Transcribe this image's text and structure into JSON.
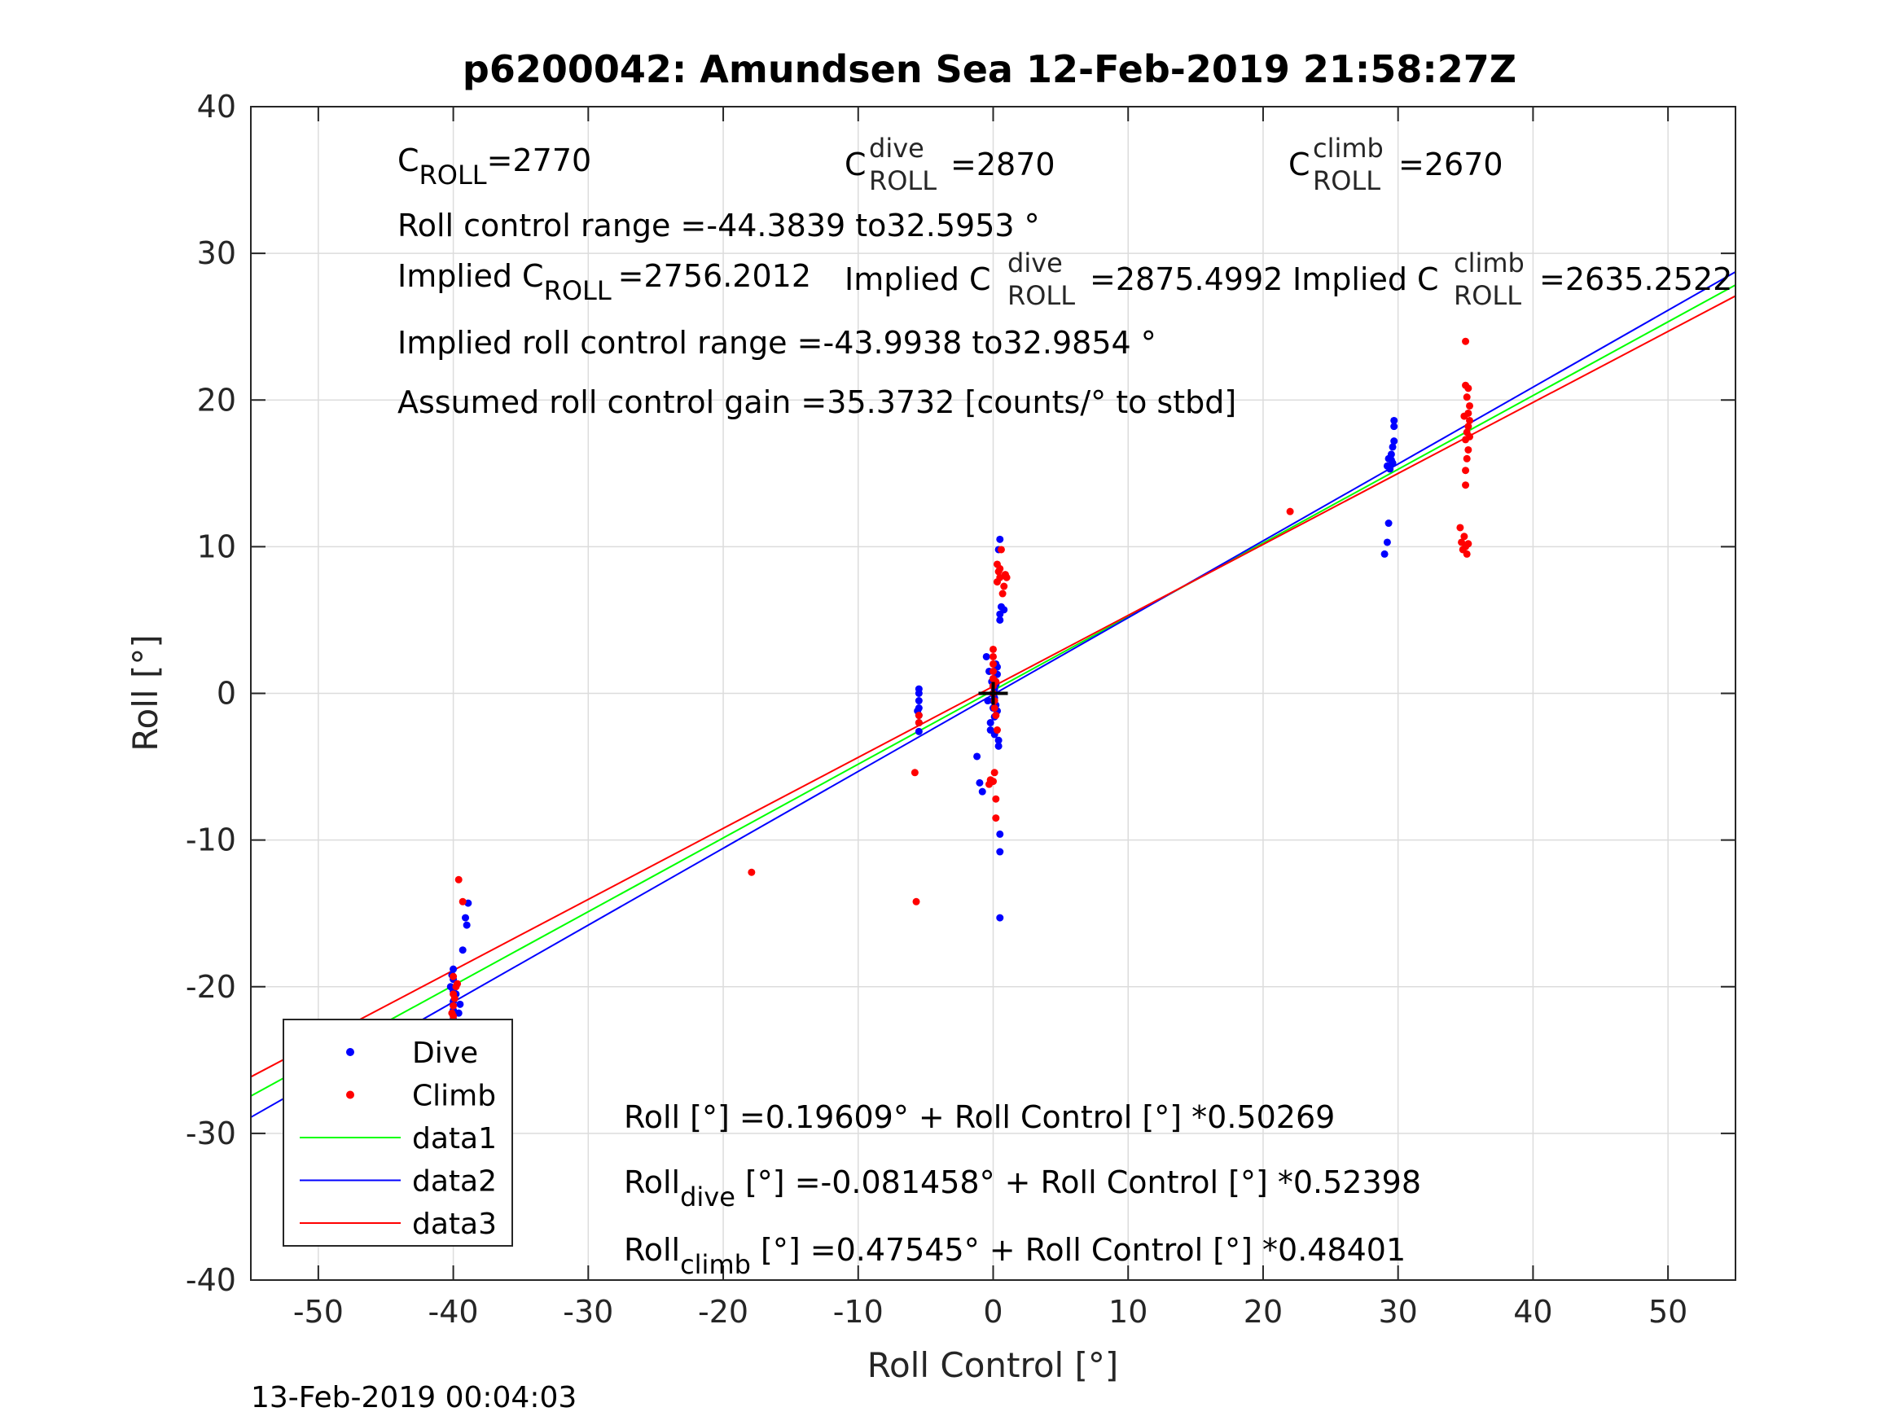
{
  "chart_data": {
    "type": "scatter",
    "title": "p6200042: Amundsen Sea 12-Feb-2019 21:58:27Z",
    "xlabel": "Roll Control [°]",
    "ylabel": "Roll [°]",
    "xlim": [
      -55,
      55
    ],
    "ylim": [
      -40,
      40
    ],
    "xticks": [
      -50,
      -40,
      -30,
      -20,
      -10,
      0,
      10,
      20,
      30,
      40,
      50
    ],
    "yticks": [
      -40,
      -30,
      -20,
      -10,
      0,
      10,
      20,
      30,
      40
    ],
    "grid": true,
    "legend_position": "bottom-left",
    "footer": "13-Feb-2019 00:04:03",
    "annotations": {
      "c_roll": {
        "main": "C",
        "sub": "ROLL",
        "value": "=2770"
      },
      "c_roll_dive": {
        "main": "C",
        "sup": "dive",
        "sub": "ROLL",
        "value": "=2870"
      },
      "c_roll_climb": {
        "main": "C",
        "sup": "climb",
        "sub": "ROLL",
        "value": "=2670"
      },
      "roll_range": "Roll control range =-44.3839 to32.5953 °",
      "implied_c_roll": {
        "main": "Implied C",
        "sub": "ROLL",
        "value": "=2756.2012"
      },
      "implied_c_roll_dive": {
        "main": "Implied C",
        "sup": "dive",
        "sub": "ROLL",
        "value": "=2875.4992"
      },
      "implied_c_roll_climb": {
        "main": "Implied C",
        "sup": "climb",
        "sub": "ROLL",
        "value": "=2635.2522"
      },
      "implied_range": "Implied roll control range =-43.9938 to32.9854 °",
      "gain": "Assumed roll control gain =35.3732 [counts/° to stbd]",
      "fit_all": "Roll [°] =0.19609° + Roll Control [°] *0.50269",
      "fit_dive": {
        "main": "Roll",
        "sub": "dive",
        "rest": " [°] =-0.081458° + Roll Control [°] *0.52398"
      },
      "fit_climb": {
        "main": "Roll",
        "sub": "climb",
        "rest": " [°] =0.47545° + Roll Control [°] *0.48401"
      }
    },
    "lines": [
      {
        "name": "data1",
        "color": "#00ff00",
        "intercept": 0.19609,
        "slope": 0.50269
      },
      {
        "name": "data2",
        "color": "#0000ff",
        "intercept": -0.081458,
        "slope": 0.52398
      },
      {
        "name": "data3",
        "color": "#ff0000",
        "intercept": 0.47545,
        "slope": 0.48401
      }
    ],
    "series": [
      {
        "name": "Dive",
        "color": "#0000ff",
        "points": [
          [
            -40,
            -18.8
          ],
          [
            -40,
            -19.5
          ],
          [
            -40,
            -20.3
          ],
          [
            -40,
            -21
          ],
          [
            -40,
            -21.6
          ],
          [
            -40,
            -22.2
          ],
          [
            -40,
            -22.8
          ],
          [
            -40,
            -23.5
          ],
          [
            -39.8,
            -20.5
          ],
          [
            -39.6,
            -21.8
          ],
          [
            -39.3,
            -17.5
          ],
          [
            -39.1,
            -15.3
          ],
          [
            -39,
            -15.8
          ],
          [
            -38.9,
            -14.3
          ],
          [
            -39.5,
            -21.2
          ],
          [
            -40.2,
            -20
          ],
          [
            -39.7,
            -22.5
          ],
          [
            -40.1,
            -19.2
          ],
          [
            -5.5,
            0
          ],
          [
            -5.5,
            -0.5
          ],
          [
            -5.5,
            -1
          ],
          [
            -5.5,
            -1.5
          ],
          [
            -5.5,
            -2
          ],
          [
            -5.5,
            -2.6
          ],
          [
            -5.5,
            0.3
          ],
          [
            -5.6,
            -1.2
          ],
          [
            -1.2,
            -4.3
          ],
          [
            -1,
            -6.1
          ],
          [
            -0.8,
            -6.7
          ],
          [
            -0.4,
            -0.5
          ],
          [
            -0.2,
            -2.5
          ],
          [
            -0.5,
            2.5
          ],
          [
            -0.3,
            1.5
          ],
          [
            -0.1,
            0.8
          ],
          [
            0,
            0
          ],
          [
            0,
            0.5
          ],
          [
            0,
            -0.5
          ],
          [
            0,
            1
          ],
          [
            0,
            -1
          ],
          [
            0.1,
            0.3
          ],
          [
            0.1,
            -0.3
          ],
          [
            0.2,
            0.6
          ],
          [
            0.2,
            -0.8
          ],
          [
            0.3,
            -1.2
          ],
          [
            0.3,
            1.3
          ],
          [
            0.4,
            -3.6
          ],
          [
            0.4,
            -3.2
          ],
          [
            0.5,
            5
          ],
          [
            0.5,
            5.4
          ],
          [
            0.5,
            -9.6
          ],
          [
            0.5,
            -10.8
          ],
          [
            0.5,
            10.5
          ],
          [
            0.4,
            9.8
          ],
          [
            0.6,
            5.9
          ],
          [
            0.8,
            5.7
          ],
          [
            0.5,
            -15.3
          ],
          [
            -0.2,
            -2
          ],
          [
            0.1,
            -2.8
          ],
          [
            0.2,
            2
          ],
          [
            0.3,
            1.8
          ],
          [
            0.1,
            -1.6
          ],
          [
            29,
            9.5
          ],
          [
            29.2,
            10.3
          ],
          [
            29.3,
            11.6
          ],
          [
            29.2,
            15.5
          ],
          [
            29.3,
            16
          ],
          [
            29.4,
            15.3
          ],
          [
            29.5,
            16.3
          ],
          [
            29.6,
            16.8
          ],
          [
            29.7,
            17.2
          ],
          [
            29.7,
            18.2
          ],
          [
            29.7,
            18.6
          ],
          [
            29.6,
            15.7
          ],
          [
            29.5,
            15.9
          ]
        ]
      },
      {
        "name": "Climb",
        "color": "#ff0000",
        "points": [
          [
            -39.6,
            -12.7
          ],
          [
            -39.3,
            -14.2
          ],
          [
            -40,
            -19.3
          ],
          [
            -40,
            -20.5
          ],
          [
            -40,
            -21.3
          ],
          [
            -40,
            -22
          ],
          [
            -40,
            -22.7
          ],
          [
            -39.8,
            -20
          ],
          [
            -39.7,
            -19.8
          ],
          [
            -40.1,
            -21.8
          ],
          [
            -39.9,
            -20.8
          ],
          [
            -17.9,
            -12.2
          ],
          [
            -5.8,
            -5.4
          ],
          [
            -5.7,
            -14.2
          ],
          [
            -5.5,
            -1.5
          ],
          [
            -5.5,
            -2
          ],
          [
            -0.3,
            -6.2
          ],
          [
            -0.2,
            -5.9
          ],
          [
            0,
            -6
          ],
          [
            0.1,
            -5.4
          ],
          [
            0.2,
            -7.2
          ],
          [
            0.2,
            -8.5
          ],
          [
            0.3,
            -2.5
          ],
          [
            0,
            0
          ],
          [
            0,
            0.5
          ],
          [
            0,
            1
          ],
          [
            0,
            1.5
          ],
          [
            0,
            2
          ],
          [
            0,
            2.5
          ],
          [
            0,
            3
          ],
          [
            0.1,
            -0.5
          ],
          [
            0.1,
            -1
          ],
          [
            0.2,
            0.8
          ],
          [
            0.2,
            -1.5
          ],
          [
            0.3,
            7.6
          ],
          [
            0.3,
            8.8
          ],
          [
            0.4,
            8.3
          ],
          [
            0.5,
            7.9
          ],
          [
            0.6,
            9.8
          ],
          [
            0.7,
            6.8
          ],
          [
            0.8,
            7.3
          ],
          [
            0.9,
            8.1
          ],
          [
            1,
            7.9
          ],
          [
            0.5,
            8.5
          ],
          [
            22,
            12.4
          ],
          [
            34.6,
            11.3
          ],
          [
            34.7,
            10.3
          ],
          [
            34.8,
            9.8
          ],
          [
            34.9,
            10.7
          ],
          [
            35,
            10
          ],
          [
            35.1,
            9.5
          ],
          [
            35.2,
            10.2
          ],
          [
            35,
            14.2
          ],
          [
            35,
            15.2
          ],
          [
            35.1,
            16
          ],
          [
            35.2,
            16.6
          ],
          [
            35,
            17.3
          ],
          [
            35.1,
            17.8
          ],
          [
            35.2,
            18.2
          ],
          [
            35.3,
            18.6
          ],
          [
            35.2,
            19.1
          ],
          [
            35.3,
            19.6
          ],
          [
            35.1,
            20.2
          ],
          [
            35.2,
            20.8
          ],
          [
            35,
            21
          ],
          [
            35,
            24
          ],
          [
            34.9,
            18.9
          ],
          [
            35.3,
            17.5
          ]
        ]
      }
    ],
    "center_marker": [
      0,
      0
    ],
    "legend": [
      {
        "label": "Dive",
        "kind": "marker",
        "color": "#0000ff"
      },
      {
        "label": "Climb",
        "kind": "marker",
        "color": "#ff0000"
      },
      {
        "label": "data1",
        "kind": "line",
        "color": "#00ff00"
      },
      {
        "label": "data2",
        "kind": "line",
        "color": "#0000ff"
      },
      {
        "label": "data3",
        "kind": "line",
        "color": "#ff0000"
      }
    ]
  }
}
